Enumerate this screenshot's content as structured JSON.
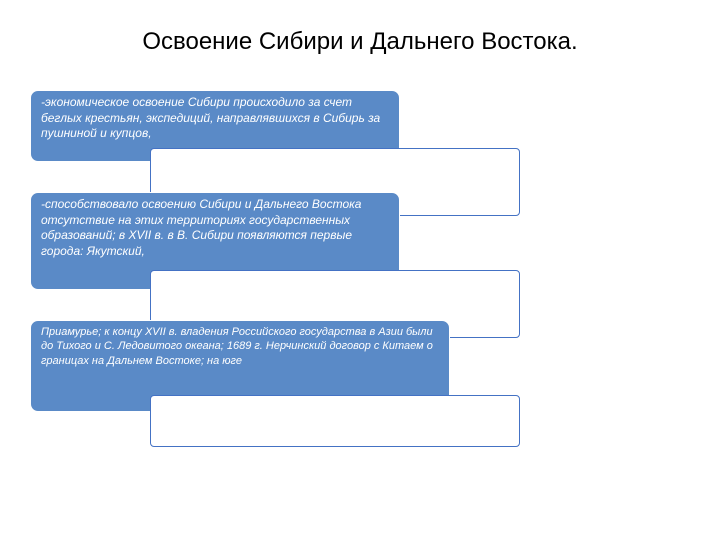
{
  "title": "Освоение Сибири и Дальнего Востока.",
  "boxes": {
    "blue1": "-экономическое освоение Сибири происходило за счет беглых крестьян, экспедиций, направлявшихся в Сибирь за пушниной и купцов,",
    "blue2": "-способствовало освоению Сибири и Дальнего Востока отсутствие на этих территориях государственных образований; в XVII в. в В. Сибири появляются первые города: Якутский,",
    "blue3": "Приамурье; к концу XVII в. владения Российского государства в Азии были до Тихого и С. Ледовитого океана; 1689 г. Нерчинский договор с Китаем о границах на Дальнем Востоке; на юге"
  },
  "styling": {
    "blue_bg": "#5a8ac7",
    "blue_border": "#4472c4",
    "text_color_light": "#ffffff",
    "title_color": "#000000",
    "title_fontsize": 24,
    "body_fontsize": 12,
    "font_style": "italic"
  }
}
